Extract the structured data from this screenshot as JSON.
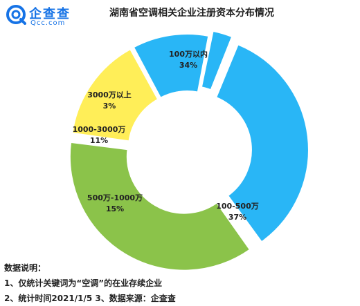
{
  "logo": {
    "cn": "企查查",
    "en": "Qcc.com"
  },
  "colors": {
    "brand": "#1673e6",
    "blue": "#29b6f6",
    "green": "#8bc34a",
    "yellow": "#ffee58"
  },
  "notes": {
    "heading": "数据说明：",
    "line1": "1、仅统计关键词为“空调”的在业存续企业",
    "line2": "2、统计时间2021/1/5   3、数据来源：企查查"
  },
  "chart_data": {
    "type": "pie",
    "title": "湖南省空调相关企业注册资本分布情况",
    "donut": true,
    "slices": [
      {
        "label": "100万以内",
        "value": 34,
        "value_label": "34%",
        "color": "#29b6f6"
      },
      {
        "label": "100-500万",
        "value": 37,
        "value_label": "37%",
        "color": "#8bc34a"
      },
      {
        "label": "500万-1000万",
        "value": 15,
        "value_label": "15%",
        "color": "#ffee58"
      },
      {
        "label": "1000-3000万",
        "value": 11,
        "value_label": "11%",
        "color": "#29b6f6"
      },
      {
        "label": "3000万以上",
        "value": 3,
        "value_label": "3%",
        "color": "#29b6f6"
      }
    ]
  }
}
